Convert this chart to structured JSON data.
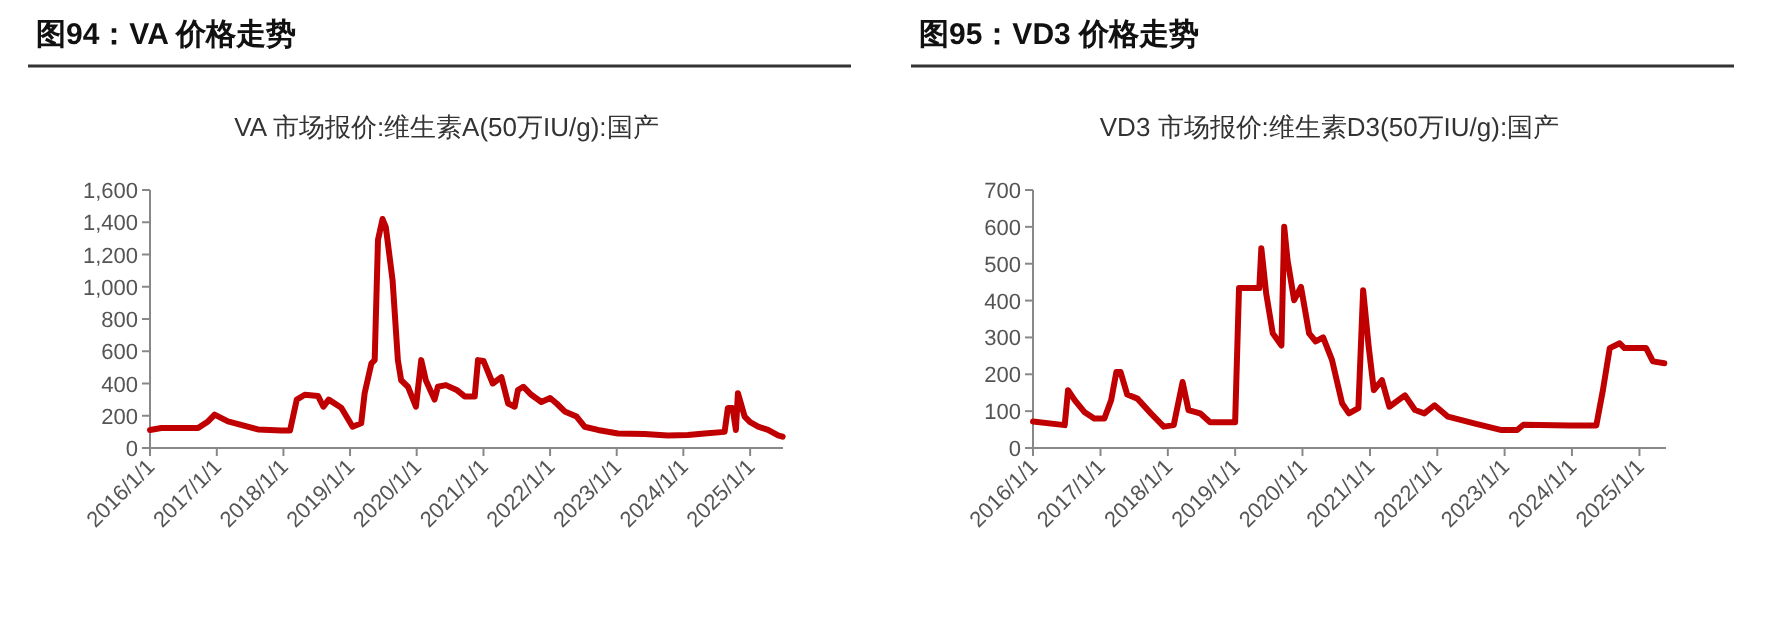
{
  "chart_data": [
    {
      "type": "line",
      "title": "图94：VA 价格走势",
      "subtitle": "VA 市场报价:维生素A(50万IU/g):国产",
      "x": [
        "2016-01-01",
        "2016-03-03",
        "2016-09-20",
        "2016-11-14",
        "2016-12-20",
        "2017-03-03",
        "2017-08-15",
        "2017-12-20",
        "2018-02-06",
        "2018-03-15",
        "2018-04-28",
        "2018-07-10",
        "2018-08-08",
        "2018-09-06",
        "2018-11-14",
        "2019-01-15",
        "2019-03-03",
        "2019-03-22",
        "2019-04-28",
        "2019-05-16",
        "2019-06-03",
        "2019-06-28",
        "2019-07-16",
        "2019-08-22",
        "2019-09-20",
        "2019-10-08",
        "2019-11-14",
        "2019-12-28",
        "2020-01-26",
        "2020-02-20",
        "2020-04-08",
        "2020-04-26",
        "2020-06-09",
        "2020-08-07",
        "2020-09-20",
        "2020-11-14",
        "2020-12-02",
        "2021-01-01",
        "2021-02-21",
        "2021-04-09",
        "2021-05-16",
        "2021-06-21",
        "2021-07-09",
        "2021-08-07",
        "2021-09-20",
        "2021-11-14",
        "2022-01-01",
        "2022-02-06",
        "2022-03-22",
        "2022-05-26",
        "2022-07-09",
        "2022-09-20",
        "2023-01-08",
        "2023-06-03",
        "2023-10-08",
        "2024-01-26",
        "2024-04-26",
        "2024-08-14",
        "2024-09-01",
        "2024-09-27",
        "2024-10-15",
        "2024-10-26",
        "2024-12-02",
        "2025-01-01",
        "2025-02-14",
        "2025-04-09",
        "2025-06-03",
        "2025-06-28"
      ],
      "series": [
        {
          "color": "#c00000",
          "values": [
            112,
            124,
            124,
            165,
            207,
            165,
            115,
            108,
            108,
            300,
            330,
            322,
            256,
            300,
            250,
            132,
            153,
            340,
            525,
            545,
            1290,
            1420,
            1370,
            1040,
            545,
            420,
            380,
            256,
            545,
            420,
            300,
            380,
            390,
            360,
            320,
            320,
            545,
            540,
            400,
            440,
            276,
            256,
            360,
            380,
            330,
            285,
            310,
            276,
            227,
            195,
            132,
            112,
            90,
            87,
            78,
            80,
            90,
            100,
            248,
            248,
            112,
            340,
            195,
            160,
            132,
            112,
            78,
            70
          ]
        }
      ],
      "xlim": [
        "2016-01-01",
        "2025-06-30"
      ],
      "xticks": [
        {
          "value": "2016-01-01",
          "label": "2016/1/1"
        },
        {
          "value": "2017-01-01",
          "label": "2017/1/1"
        },
        {
          "value": "2018-01-01",
          "label": "2018/1/1"
        },
        {
          "value": "2019-01-01",
          "label": "2019/1/1"
        },
        {
          "value": "2020-01-01",
          "label": "2020/1/1"
        },
        {
          "value": "2021-01-01",
          "label": "2021/1/1"
        },
        {
          "value": "2022-01-01",
          "label": "2022/1/1"
        },
        {
          "value": "2023-01-01",
          "label": "2023/1/1"
        },
        {
          "value": "2024-01-01",
          "label": "2024/1/1"
        },
        {
          "value": "2025-01-01",
          "label": "2025/1/1"
        }
      ],
      "ylim": [
        0,
        1600
      ],
      "yticks": [
        0,
        200,
        400,
        600,
        800,
        {
          "value": 1000,
          "label": "1,000"
        },
        {
          "value": 1200,
          "label": "1,200"
        },
        {
          "value": 1400,
          "label": "1,400"
        },
        {
          "value": 1600,
          "label": "1,600"
        }
      ]
    },
    {
      "type": "line",
      "title": "图95：VD3 价格走势",
      "subtitle": "VD3 市场报价:维生素D3(50万IU/g):国产",
      "x": [
        "2016-01-01",
        "2016-06-21",
        "2016-07-09",
        "2016-08-14",
        "2016-10-05",
        "2016-11-28",
        "2017-01-22",
        "2017-02-28",
        "2017-03-28",
        "2017-04-20",
        "2017-05-26",
        "2017-07-20",
        "2017-10-01",
        "2017-12-10",
        "2018-02-02",
        "2018-03-22",
        "2018-04-23",
        "2018-06-25",
        "2018-08-18",
        "2019-01-01",
        "2019-01-22",
        "2019-05-12",
        "2019-05-23",
        "2019-06-18",
        "2019-07-24",
        "2019-09-09",
        "2019-09-24",
        "2019-10-12",
        "2019-11-17",
        "2019-12-24",
        "2020-02-06",
        "2020-03-13",
        "2020-04-22",
        "2020-06-09",
        "2020-08-03",
        "2020-09-09",
        "2020-10-30",
        "2020-11-25",
        "2020-12-25",
        "2021-01-22",
        "2021-03-07",
        "2021-04-16",
        "2021-07-09",
        "2021-09-02",
        "2021-10-23",
        "2021-12-17",
        "2022-02-28",
        "2022-07-20",
        "2022-12-10",
        "2023-03-10",
        "2023-04-13",
        "2023-12-20",
        "2024-05-12",
        "2024-06-17",
        "2024-07-24",
        "2024-09-16",
        "2024-10-12",
        "2025-02-06",
        "2025-03-15",
        "2025-05-16"
      ],
      "series": [
        {
          "color": "#c00000",
          "values": [
            72,
            62,
            157,
            130,
            98,
            80,
            80,
            130,
            206,
            206,
            145,
            134,
            94,
            58,
            62,
            179,
            103,
            94,
            70,
            70,
            434,
            434,
            542,
            420,
            311,
            278,
            600,
            510,
            401,
            437,
            311,
            289,
            300,
            239,
            121,
            94,
            108,
            428,
            275,
            157,
            184,
            112,
            143,
            103,
            94,
            116,
            85,
            67,
            49,
            49,
            63,
            61,
            61,
            157,
            271,
            284,
            271,
            271,
            235,
            230
          ]
        }
      ],
      "xlim": [
        "2016-01-01",
        "2025-05-25"
      ],
      "xticks": [
        {
          "value": "2016-01-01",
          "label": "2016/1/1"
        },
        {
          "value": "2017-01-01",
          "label": "2017/1/1"
        },
        {
          "value": "2018-01-01",
          "label": "2018/1/1"
        },
        {
          "value": "2019-01-01",
          "label": "2019/1/1"
        },
        {
          "value": "2020-01-01",
          "label": "2020/1/1"
        },
        {
          "value": "2021-01-01",
          "label": "2021/1/1"
        },
        {
          "value": "2022-01-01",
          "label": "2022/1/1"
        },
        {
          "value": "2023-01-01",
          "label": "2023/1/1"
        },
        {
          "value": "2024-01-01",
          "label": "2024/1/1"
        },
        {
          "value": "2025-01-01",
          "label": "2025/1/1"
        }
      ],
      "ylim": [
        0,
        700
      ],
      "yticks": [
        0,
        100,
        200,
        300,
        400,
        500,
        600,
        700
      ]
    }
  ]
}
